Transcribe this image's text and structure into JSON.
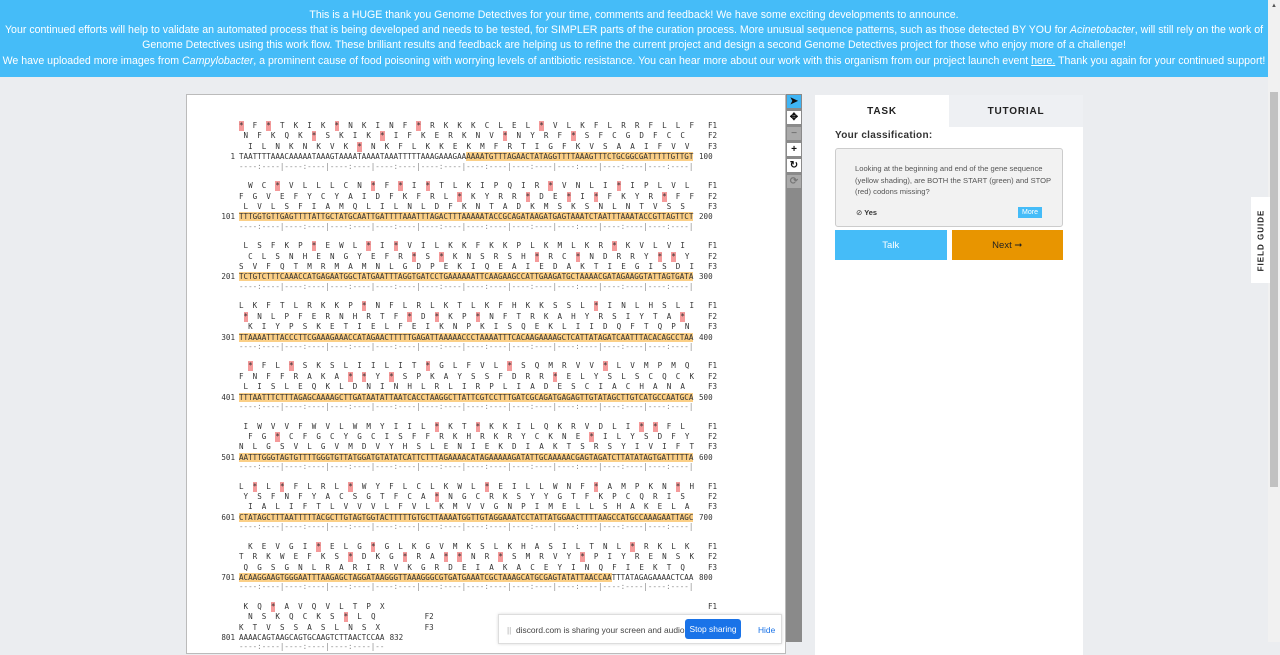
{
  "banner": {
    "line1": "This is a HUGE thank you Genome Detectives for your time, comments and feedback! We have some exciting developments to announce.",
    "line2a": "Your continued efforts will help to validate an automated process that is being developed and needs to be tested, for SIMPLER parts of the curation process. More unusual sequence patterns, such as those detected BY YOU for ",
    "line2_em": "Acinetobacter",
    "line2b": ", will still rely on the work of",
    "line3": "Genome Detectives using this work flow. These brilliant results and feedback are helping us to refine the current project and design a second Genome Detectives project for those who enjoy more of a challenge!",
    "line4a": "We have uploaded more images from ",
    "line4_em": "Campylobacter",
    "line4b": ", a prominent cause of food poisoning with worrying levels of antibiotic resistance. You can hear more about our work with this organism from our project launch event ",
    "line4_link": "here.",
    "line4c": " Thank you again for your continued support!"
  },
  "toolbar": {
    "icons": [
      "pointer-icon",
      "move-icon",
      "zoom-out-icon",
      "zoom-in-icon",
      "rotate-icon",
      "reset-icon"
    ],
    "glyphs": [
      "➤",
      "✥",
      "−",
      "+",
      "↻",
      "⟳"
    ]
  },
  "sequence": {
    "frame_labels": [
      "F1",
      "F2",
      "F3"
    ],
    "ruler_unit": "----:----|",
    "blocks": [
      {
        "start": "1",
        "end": "100",
        "dna": "TAATTTTAAACAAAAATAAAGTAAAATAAAATAAATTTTTAAAGAAAGAAAAAATGTTTAGAACTATAGGTTTTAAAGTTTCTGCGGCGATTTTTGTTGT",
        "highlight": [
          51,
          100
        ],
        "frames": [
          "*F*TKIK*NKINF*RKKKCLEL*VLKFLRRFLLF",
          "NFKQK*SKIK*IFKERKNV*NYRF*SFCGDFCC",
          "ILNKNKVK*NKFLKKEKMFRTIGFKVSAAIFVV"
        ]
      },
      {
        "start": "101",
        "end": "200",
        "dna": "TTTGGTGTTGAGTTTTATTGCTATGCAATTGATTTTAAATTTAGACTTTAAAAATACCGCAGATAAGATGAGTAAATCTAATTTAAATACCGTTAGTTCT",
        "highlight": [
          101,
          200
        ],
        "frames": [
          "WC*VLLLCN*F*I*TLKIPQIR*VNLI*IPLVL",
          "FGVEFYCYAIDFKFRL*KYRR*DE*I*FKYR*FF",
          "LVLSFIAMQLILNLDFKNTADKMSKSNLNTVSS"
        ]
      },
      {
        "start": "201",
        "end": "300",
        "dna": "TCTGTCTTTCAAACCATGAGAATGGCTATGAATTTAGGTGATCCTGAAAAAATTCAAGAAGCCATTGAAGATGCTAAAACGATAGAAGGTATTAGTGATA",
        "highlight": [
          201,
          300
        ],
        "frames": [
          "LSFKP*EWL*I*VILKKFKKPLKMLKR*KVLVI",
          "CLSNHENGYEFR*S*KNSRSH*RC*NDRRY**Y",
          "SVFQTMRMAMNLGDPEKIQEAIEDAKTIEGISDI"
        ]
      },
      {
        "start": "301",
        "end": "400",
        "dna": "TTAAAATTTACCCTTCGAAAGAAACCATAGAACTTTTTGAGATTAAAAACCCTAAAATTTCACAAGAAAAGCTCATTATAGATCAATTTACACAGCCTAA",
        "highlight": [
          301,
          400
        ],
        "frames": [
          "LKFTLRKKP*NFLRLKTLKFHKKSSL*INLHSLI",
          "*NLPFERNHRTF*D*KP*NFTRKAHYRSIYTA*",
          "KIYPSKETIELFEIKNPKISQEKLIIDQFTQPN"
        ]
      },
      {
        "start": "401",
        "end": "500",
        "dna": "TTTAATTTCTTTAGAGCAAAAGCTTGATAATATTAATCACCTAAGGCTTATTCGTCCTTTGATCGCAGATGAGAGTTGTATAGCTTGTCATGCCAATGCA",
        "highlight": [
          401,
          500
        ],
        "frames": [
          "*FL*SKSLIILIT*GLFVL*SQMRVV*LVMPMQ",
          "FNFFRAKA**Y*SPKAYSSFDRR*ELYSLSCQCK",
          "LISLEQKLDNINHLRLIRPLIADESCIACHANA"
        ]
      },
      {
        "start": "501",
        "end": "600",
        "dna": "AATTTGGGTAGTGTTTTGGGTGTTATGGATGTATATCATTCTTTAGAAAACATAGAAAAAGATATTGCAAAAACGAGTAGATCTTATATAGTGATTTTTA",
        "highlight": [
          501,
          600
        ],
        "frames": [
          "IWVVFWVLWMYIIL*KT*KKILQKRVDLI**FL",
          "FG*CFGCYGCISFFRKHRKRYCKNE*ILYSDFY",
          "NLGSVLGVMDVYHSLENIEKDIAKTSRSYIVIFT"
        ]
      },
      {
        "start": "601",
        "end": "700",
        "dna": "CTATAGCTTTAATTTTTACGCTTGTAGTGGTACTTTTTGTGCTTAAAATGGTTGTAGGAAATCCTATTATGGAACTTTTAAGCCATGCCAAAGAATTAGC",
        "highlight": [
          601,
          700
        ],
        "frames": [
          "L*L*FLRL*WYFLCLKWL*EILLWNF*AMPKN*H",
          "YSFNFYACSGTFCA*NGCRKSYYGTFKPCQRIS",
          "IALIFTLVVVLFVLKMVVGNPIMELLSHAKELA"
        ]
      },
      {
        "start": "701",
        "end": "800",
        "dna": "ACAAGGAAGTGGGAATTTAAGAGCTAGGATAAGGGTTAAAGGGCGTGATGAAATCGCTAAAGCATGCGAGTATATTAACCAATTTATAGAGAAAACTCAA",
        "highlight": [
          701,
          782
        ],
        "frames": [
          "KEVGI*ELG*GLKGVMKSLKHASILTNL*RKLK",
          "TRKWEFKS*DKG*RA**NR*SMRVY*PIYRENSK",
          "QGSGNLRARIRVKGRDEIAKACEYINQFIEKTQ"
        ]
      },
      {
        "start": "801",
        "end": "832",
        "dna": "AAAACAGTAAGCAGTGCAAGTCTTAACTCCAA",
        "highlight": null,
        "frames": [
          "KQ*AVQVLTPX",
          "NSKQCKS*LQ",
          "KTVSSASLNSX"
        ]
      }
    ]
  },
  "panel": {
    "tabs": [
      "TASK",
      "TUTORIAL"
    ],
    "classification_label": "Your classification:",
    "question": "Looking at the beginning and end of the gene sequence (yellow shading), are BOTH the START (green) and STOP (red) codons missing?",
    "answer": "Yes",
    "more": "More",
    "talk": "Talk",
    "next": "Next ➞"
  },
  "field_guide": "FIELD GUIDE",
  "discord": {
    "message": "discord.com is sharing your screen and audio.",
    "stop": "Stop sharing",
    "hide": "Hide"
  },
  "colors": {
    "banner": "#45bcf8",
    "highlight": "#fbcf86",
    "stop": "#f59a9a",
    "next": "#e89500"
  }
}
